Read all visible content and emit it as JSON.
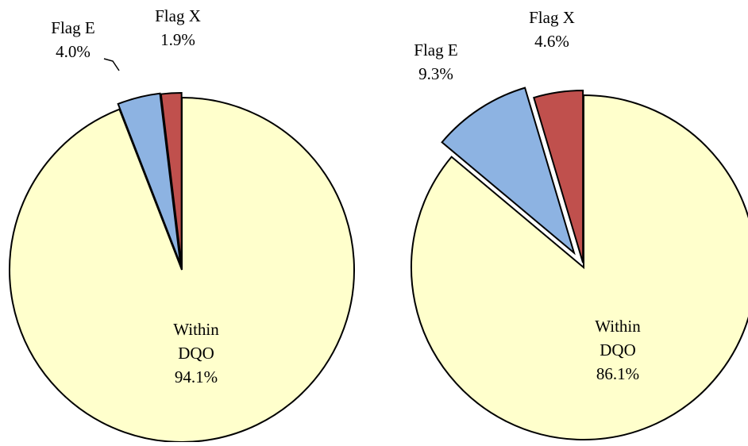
{
  "chart_data": [
    {
      "type": "pie",
      "title": "",
      "slices": [
        {
          "name": "Flag X",
          "label_lines": [
            "Flag X",
            "1.9%"
          ],
          "value": 1.9,
          "color": "#c0504d"
        },
        {
          "name": "Flag E",
          "label_lines": [
            "Flag E",
            "4.0%"
          ],
          "value": 4.0,
          "color": "#8db3e2"
        },
        {
          "name": "Within DQO",
          "label_lines": [
            "Within",
            "DQO",
            "94.1%"
          ],
          "value": 94.1,
          "color": "#ffffcc"
        }
      ],
      "exploded": true,
      "legend": "none"
    },
    {
      "type": "pie",
      "title": "",
      "slices": [
        {
          "name": "Flag X",
          "label_lines": [
            "Flag X",
            "4.6%"
          ],
          "value": 4.6,
          "color": "#c0504d"
        },
        {
          "name": "Flag E",
          "label_lines": [
            "Flag E",
            "9.3%"
          ],
          "value": 9.3,
          "color": "#8db3e2"
        },
        {
          "name": "Within DQO",
          "label_lines": [
            "Within",
            "DQO",
            "86.1%"
          ],
          "value": 86.1,
          "color": "#ffffcc"
        }
      ],
      "exploded": true,
      "legend": "none"
    }
  ]
}
